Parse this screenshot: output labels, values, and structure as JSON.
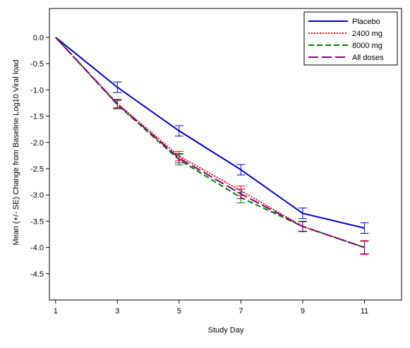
{
  "chart_data": {
    "type": "line",
    "title": "",
    "xlabel": "Study Day",
    "ylabel": "Mean (+/- SE) Change from Baseline Log10 Viral load",
    "x": [
      1,
      3,
      5,
      7,
      9,
      11
    ],
    "x_ticks": [
      "1",
      "3",
      "5",
      "7",
      "9",
      "11"
    ],
    "xlim": [
      0.8,
      12.2
    ],
    "y_ticks": [
      "0.0",
      "-0.5",
      "-1.0",
      "-1.5",
      "-2.0",
      "-2.5",
      "-3.0",
      "-3.5",
      "-4.0",
      "-4.5"
    ],
    "ylim": [
      -5.0,
      0.55
    ],
    "grid": false,
    "legend_position": "top-right",
    "error_bars": true,
    "series": [
      {
        "name": "Placebo",
        "color": "#0000CC",
        "line_style": "solid",
        "values": [
          0.0,
          -0.95,
          -1.78,
          -2.52,
          -3.35,
          -3.63
        ],
        "se": [
          0.0,
          0.1,
          0.1,
          0.1,
          0.1,
          0.1
        ]
      },
      {
        "name": "2400 mg",
        "color": "#FF0000",
        "line_style": "dotted",
        "values": [
          0.0,
          -1.26,
          -2.26,
          -2.92,
          -3.6,
          -4.0
        ],
        "se": [
          0.0,
          0.08,
          0.09,
          0.09,
          0.09,
          0.13
        ]
      },
      {
        "name": "8000 mg",
        "color": "#008000",
        "line_style": "dashed",
        "values": [
          0.0,
          -1.28,
          -2.33,
          -3.05,
          -3.6,
          -4.0
        ],
        "se": [
          0.0,
          0.08,
          0.1,
          0.1,
          0.1,
          0.12
        ]
      },
      {
        "name": "All doses",
        "color": "#800080",
        "line_style": "longdash",
        "values": [
          0.0,
          -1.27,
          -2.3,
          -2.98,
          -3.6,
          -4.0
        ],
        "se": [
          0.0,
          0.08,
          0.09,
          0.09,
          0.09,
          0.12
        ]
      }
    ]
  }
}
